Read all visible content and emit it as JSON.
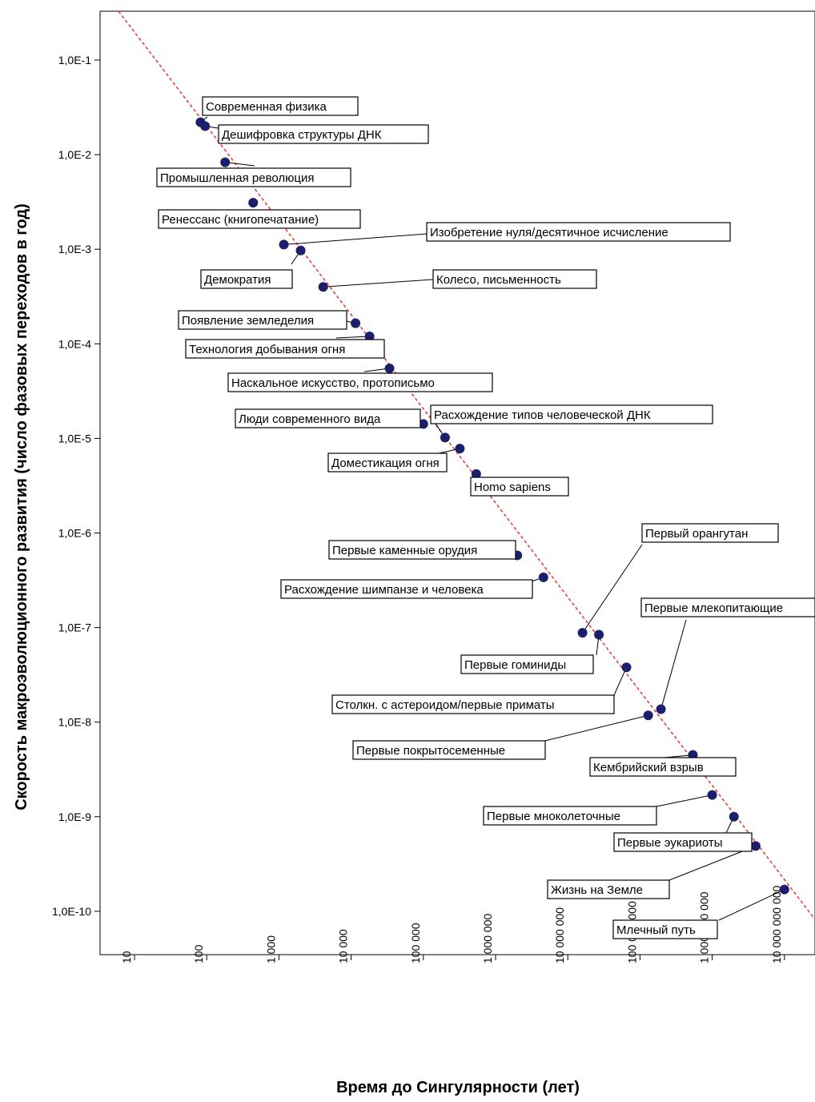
{
  "chart_data": {
    "type": "scatter",
    "title": "",
    "xlabel": "Время до Сингулярности (лет)",
    "ylabel": "Скорость макроэволюционного развития (число фазовых переходов в год)",
    "x_scale": "log",
    "y_scale": "log",
    "xlim": [
      3.2,
      20000000000
    ],
    "ylim": [
      2e-11,
      0.4
    ],
    "x_ticks": [
      {
        "value": 10,
        "label": "10"
      },
      {
        "value": 100,
        "label": "100"
      },
      {
        "value": 1000,
        "label": "1 000"
      },
      {
        "value": 10000,
        "label": "10 000"
      },
      {
        "value": 100000,
        "label": "100 000"
      },
      {
        "value": 1000000,
        "label": "1 000 000"
      },
      {
        "value": 10000000,
        "label": "10 000 000"
      },
      {
        "value": 100000000,
        "label": "100 000 000"
      },
      {
        "value": 1000000000,
        "label": "1 000 000 000"
      },
      {
        "value": 10000000000,
        "label": "10 000 000 000"
      }
    ],
    "y_ticks": [
      {
        "value": 0.1,
        "label": "1,0E-1"
      },
      {
        "value": 0.01,
        "label": "1,0E-2"
      },
      {
        "value": 0.001,
        "label": "1,0E-3"
      },
      {
        "value": 0.0001,
        "label": "1,0E-4"
      },
      {
        "value": 1e-05,
        "label": "1,0E-5"
      },
      {
        "value": 1e-06,
        "label": "1,0E-6"
      },
      {
        "value": 1e-07,
        "label": "1,0E-7"
      },
      {
        "value": 1e-08,
        "label": "1,0E-8"
      },
      {
        "value": 1e-09,
        "label": "1,0E-9"
      },
      {
        "value": 1e-10,
        "label": "1,0E-10"
      }
    ],
    "trendline": {
      "style": "dashed",
      "color": "#e8413c"
    },
    "point_color": "#1c1f6b",
    "grid": false,
    "points": [
      {
        "label": "Современная физика",
        "x": 82,
        "y": 0.022
      },
      {
        "label": "Дешифровка структуры ДНК",
        "x": 95,
        "y": 0.02
      },
      {
        "label": "Промышленная революция",
        "x": 180,
        "y": 0.0083
      },
      {
        "label": "Ренессанс (книгопечатание)",
        "x": 440,
        "y": 0.0031
      },
      {
        "label": "Изобретение нуля/десятичное исчисление",
        "x": 1170,
        "y": 0.00112
      },
      {
        "label": "Демократия",
        "x": 2000,
        "y": 0.00097
      },
      {
        "label": "Колесо, письменность",
        "x": 4100,
        "y": 0.0004
      },
      {
        "label": "Появление земледелия",
        "x": 11500,
        "y": 0.000165
      },
      {
        "label": "Технология добывания огня",
        "x": 18000,
        "y": 0.00012
      },
      {
        "label": "Наскальное искусство, протописьмо",
        "x": 34000,
        "y": 5.5e-05
      },
      {
        "label": "Люди современного вида",
        "x": 100000,
        "y": 1.42e-05
      },
      {
        "label": "Расхождение типов человеческой ДНК",
        "x": 200000,
        "y": 1.02e-05
      },
      {
        "label": "Доместикация огня",
        "x": 320000,
        "y": 7.8e-06
      },
      {
        "label": "Homo sapiens",
        "x": 540000,
        "y": 4.2e-06
      },
      {
        "label": "Первые каменные орудия",
        "x": 2000000,
        "y": 5.8e-07
      },
      {
        "label": "Расхождение шимпанзе и человека",
        "x": 4600000,
        "y": 3.4e-07
      },
      {
        "label": "Первый орангутан",
        "x": 16000000,
        "y": 8.8e-08
      },
      {
        "label": "Первые гоминиды",
        "x": 27000000,
        "y": 8.4e-08
      },
      {
        "label": "Столкн. с астероидом/первые приматы",
        "x": 65000000,
        "y": 3.8e-08
      },
      {
        "label": "Первые покрытосеменные",
        "x": 130000000,
        "y": 1.18e-08
      },
      {
        "label": "Первые млекопитающие",
        "x": 195000000,
        "y": 1.37e-08
      },
      {
        "label": "Кембрийский взрыв",
        "x": 540000000,
        "y": 4.5e-09
      },
      {
        "label": "Первые мноколеточные",
        "x": 1000000000,
        "y": 1.7e-09
      },
      {
        "label": "Первые эукариоты",
        "x": 2000000000,
        "y": 1e-09
      },
      {
        "label": "Жизнь на Земле",
        "x": 4000000000,
        "y": 4.9e-10
      },
      {
        "label": "Млечный путь",
        "x": 10000000000,
        "y": 1.7e-10
      }
    ]
  }
}
